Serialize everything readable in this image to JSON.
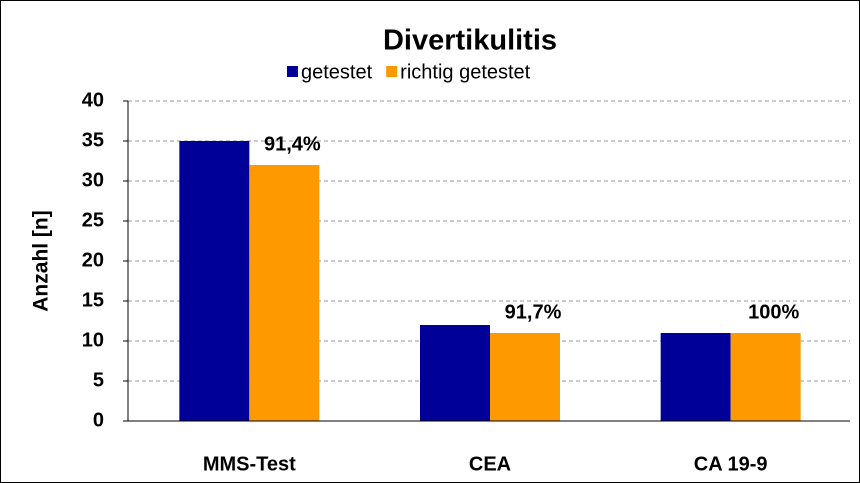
{
  "chart_data": {
    "type": "bar",
    "title": "Divertikulitis",
    "ylabel": "Anzahl [n]",
    "categories": [
      "MMS-Test",
      "CEA",
      "CA 19-9"
    ],
    "series": [
      {
        "name": "getestet",
        "color": "#000099",
        "values": [
          35,
          12,
          11
        ]
      },
      {
        "name": "richtig getestet",
        "color": "#ff9900",
        "values": [
          32,
          11,
          11
        ]
      }
    ],
    "annotations": [
      "91,4%",
      "91,7%",
      "100%"
    ],
    "ylim": [
      0,
      40
    ],
    "yticks": [
      0,
      5,
      10,
      15,
      20,
      25,
      30,
      35,
      40
    ],
    "grid": true,
    "legend": "top"
  }
}
